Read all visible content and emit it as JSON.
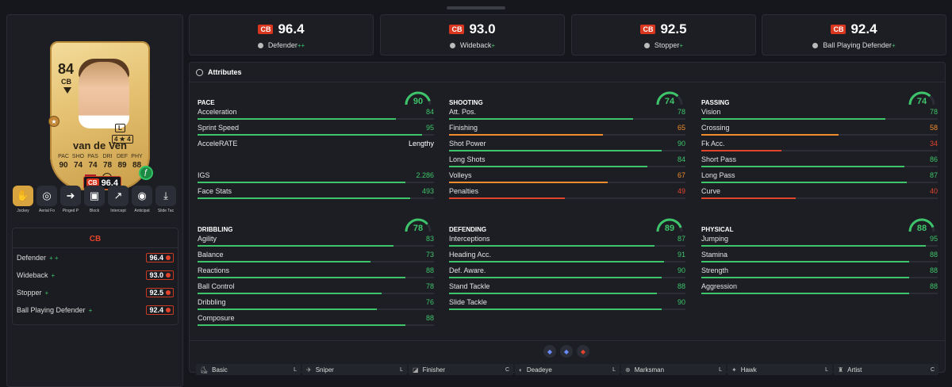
{
  "player": {
    "rating": "84",
    "position": "CB",
    "foot": "L",
    "skills": "4 ★ 4",
    "name": "van de Ven",
    "card_stats": [
      {
        "k": "PAC",
        "v": "90"
      },
      {
        "k": "SHO",
        "v": "74"
      },
      {
        "k": "PAS",
        "v": "74"
      },
      {
        "k": "DRI",
        "v": "78"
      },
      {
        "k": "DEF",
        "v": "89"
      },
      {
        "k": "PHY",
        "v": "88"
      }
    ],
    "overall_badge": "96.4"
  },
  "playstyles": [
    {
      "label": "Jockey",
      "gold": true,
      "icon": "✋"
    },
    {
      "label": "Aerial Fo",
      "gold": false,
      "icon": "◎"
    },
    {
      "label": "Pinged P",
      "gold": false,
      "icon": "➜"
    },
    {
      "label": "Block",
      "gold": false,
      "icon": "▣"
    },
    {
      "label": "Intercept",
      "gold": false,
      "icon": "↗"
    },
    {
      "label": "Anticipat",
      "gold": false,
      "icon": "◉"
    },
    {
      "label": "Slide Tac",
      "gold": false,
      "icon": "⤓"
    }
  ],
  "role_box": {
    "header": "CB",
    "rows": [
      {
        "name": "Defender",
        "plus": "+ +",
        "value": "96.4"
      },
      {
        "name": "Wideback",
        "plus": "+",
        "value": "93.0"
      },
      {
        "name": "Stopper",
        "plus": "+",
        "value": "92.5"
      },
      {
        "name": "Ball Playing Defender",
        "plus": "+",
        "value": "92.4"
      }
    ]
  },
  "role_cards": [
    {
      "tag": "CB",
      "value": "96.4",
      "role": "Defender",
      "plus": "++"
    },
    {
      "tag": "CB",
      "value": "93.0",
      "role": "Wideback",
      "plus": "+"
    },
    {
      "tag": "CB",
      "value": "92.5",
      "role": "Stopper",
      "plus": "+"
    },
    {
      "tag": "CB",
      "value": "92.4",
      "role": "Ball Playing Defender",
      "plus": "+"
    }
  ],
  "attributes_title": "Attributes",
  "groups": [
    {
      "name": "PACE",
      "total": 90,
      "rows": [
        {
          "n": "Acceleration",
          "v": "84",
          "c": "green",
          "p": 84
        },
        {
          "n": "Sprint Speed",
          "v": "95",
          "c": "green",
          "p": 95
        },
        {
          "n": "AcceleRATE",
          "v": "Lengthy",
          "c": "white",
          "p": 0
        },
        {
          "n": "",
          "v": "",
          "c": "white",
          "p": 0
        },
        {
          "n": "IGS",
          "v": "2.286",
          "c": "green",
          "p": 88
        },
        {
          "n": "Face Stats",
          "v": "493",
          "c": "green",
          "p": 90
        }
      ]
    },
    {
      "name": "SHOOTING",
      "total": 74,
      "rows": [
        {
          "n": "Att. Pos.",
          "v": "78",
          "c": "green",
          "p": 78
        },
        {
          "n": "Finishing",
          "v": "65",
          "c": "orange",
          "p": 65
        },
        {
          "n": "Shot Power",
          "v": "90",
          "c": "green",
          "p": 90
        },
        {
          "n": "Long Shots",
          "v": "84",
          "c": "green",
          "p": 84
        },
        {
          "n": "Volleys",
          "v": "67",
          "c": "orange",
          "p": 67
        },
        {
          "n": "Penalties",
          "v": "49",
          "c": "red",
          "p": 49
        }
      ]
    },
    {
      "name": "PASSING",
      "total": 74,
      "rows": [
        {
          "n": "Vision",
          "v": "78",
          "c": "green",
          "p": 78
        },
        {
          "n": "Crossing",
          "v": "58",
          "c": "orange",
          "p": 58
        },
        {
          "n": "Fk Acc.",
          "v": "34",
          "c": "red",
          "p": 34
        },
        {
          "n": "Short Pass",
          "v": "86",
          "c": "green",
          "p": 86
        },
        {
          "n": "Long Pass",
          "v": "87",
          "c": "green",
          "p": 87
        },
        {
          "n": "Curve",
          "v": "40",
          "c": "red",
          "p": 40
        }
      ]
    },
    {
      "name": "DRIBBLING",
      "total": 78,
      "rows": [
        {
          "n": "Agility",
          "v": "83",
          "c": "green",
          "p": 83
        },
        {
          "n": "Balance",
          "v": "73",
          "c": "green",
          "p": 73
        },
        {
          "n": "Reactions",
          "v": "88",
          "c": "green",
          "p": 88
        },
        {
          "n": "Ball Control",
          "v": "78",
          "c": "green",
          "p": 78
        },
        {
          "n": "Dribbling",
          "v": "76",
          "c": "green",
          "p": 76
        },
        {
          "n": "Composure",
          "v": "88",
          "c": "green",
          "p": 88
        }
      ]
    },
    {
      "name": "DEFENDING",
      "total": 89,
      "rows": [
        {
          "n": "Interceptions",
          "v": "87",
          "c": "green",
          "p": 87
        },
        {
          "n": "Heading Acc.",
          "v": "91",
          "c": "green",
          "p": 91
        },
        {
          "n": "Def. Aware.",
          "v": "90",
          "c": "green",
          "p": 90
        },
        {
          "n": "Stand Tackle",
          "v": "88",
          "c": "green",
          "p": 88
        },
        {
          "n": "Slide Tackle",
          "v": "90",
          "c": "green",
          "p": 90
        }
      ]
    },
    {
      "name": "PHYSICAL",
      "total": 88,
      "rows": [
        {
          "n": "Jumping",
          "v": "95",
          "c": "green",
          "p": 95
        },
        {
          "n": "Stamina",
          "v": "88",
          "c": "green",
          "p": 88
        },
        {
          "n": "Strength",
          "v": "88",
          "c": "green",
          "p": 88
        },
        {
          "n": "Aggression",
          "v": "88",
          "c": "green",
          "p": 88
        }
      ]
    }
  ],
  "chem_styles": [
    {
      "n": "Basic",
      "l": "L"
    },
    {
      "n": "Sniper",
      "l": "L"
    },
    {
      "n": "Finisher",
      "l": "C"
    },
    {
      "n": "Deadeye",
      "l": "L"
    },
    {
      "n": "Marksman",
      "l": "L"
    },
    {
      "n": "Hawk",
      "l": "L"
    },
    {
      "n": "Artist",
      "l": "C"
    }
  ],
  "colors": {
    "green": "#3ec46a",
    "orange": "#f08c2c",
    "red": "#e2432b",
    "accent": "#d8361e"
  }
}
